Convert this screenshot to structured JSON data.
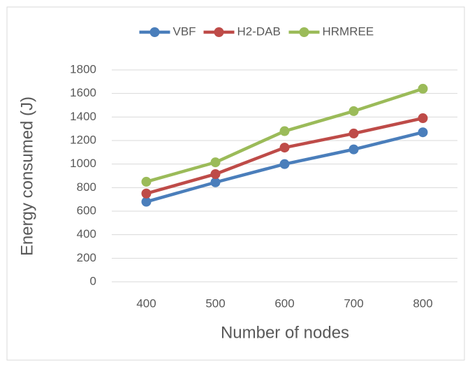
{
  "chart_data": {
    "type": "line",
    "x_label": "Number of nodes",
    "y_label": "Energy consumed (J)",
    "categories": [
      "400",
      "500",
      "600",
      "700",
      "800"
    ],
    "series": [
      {
        "name": "VBF",
        "color": "#4a7ebb",
        "values": [
          680,
          845,
          1000,
          1125,
          1270
        ]
      },
      {
        "name": "H2-DAB",
        "color": "#be4b48",
        "values": [
          750,
          915,
          1140,
          1260,
          1390
        ]
      },
      {
        "name": "HRMREE",
        "color": "#9bbb59",
        "values": [
          850,
          1015,
          1280,
          1450,
          1640
        ]
      }
    ],
    "ylim": [
      0,
      1800
    ],
    "yticks": [
      0,
      200,
      400,
      600,
      800,
      1000,
      1200,
      1400,
      1600,
      1800
    ],
    "grid": true,
    "legend": "top"
  }
}
